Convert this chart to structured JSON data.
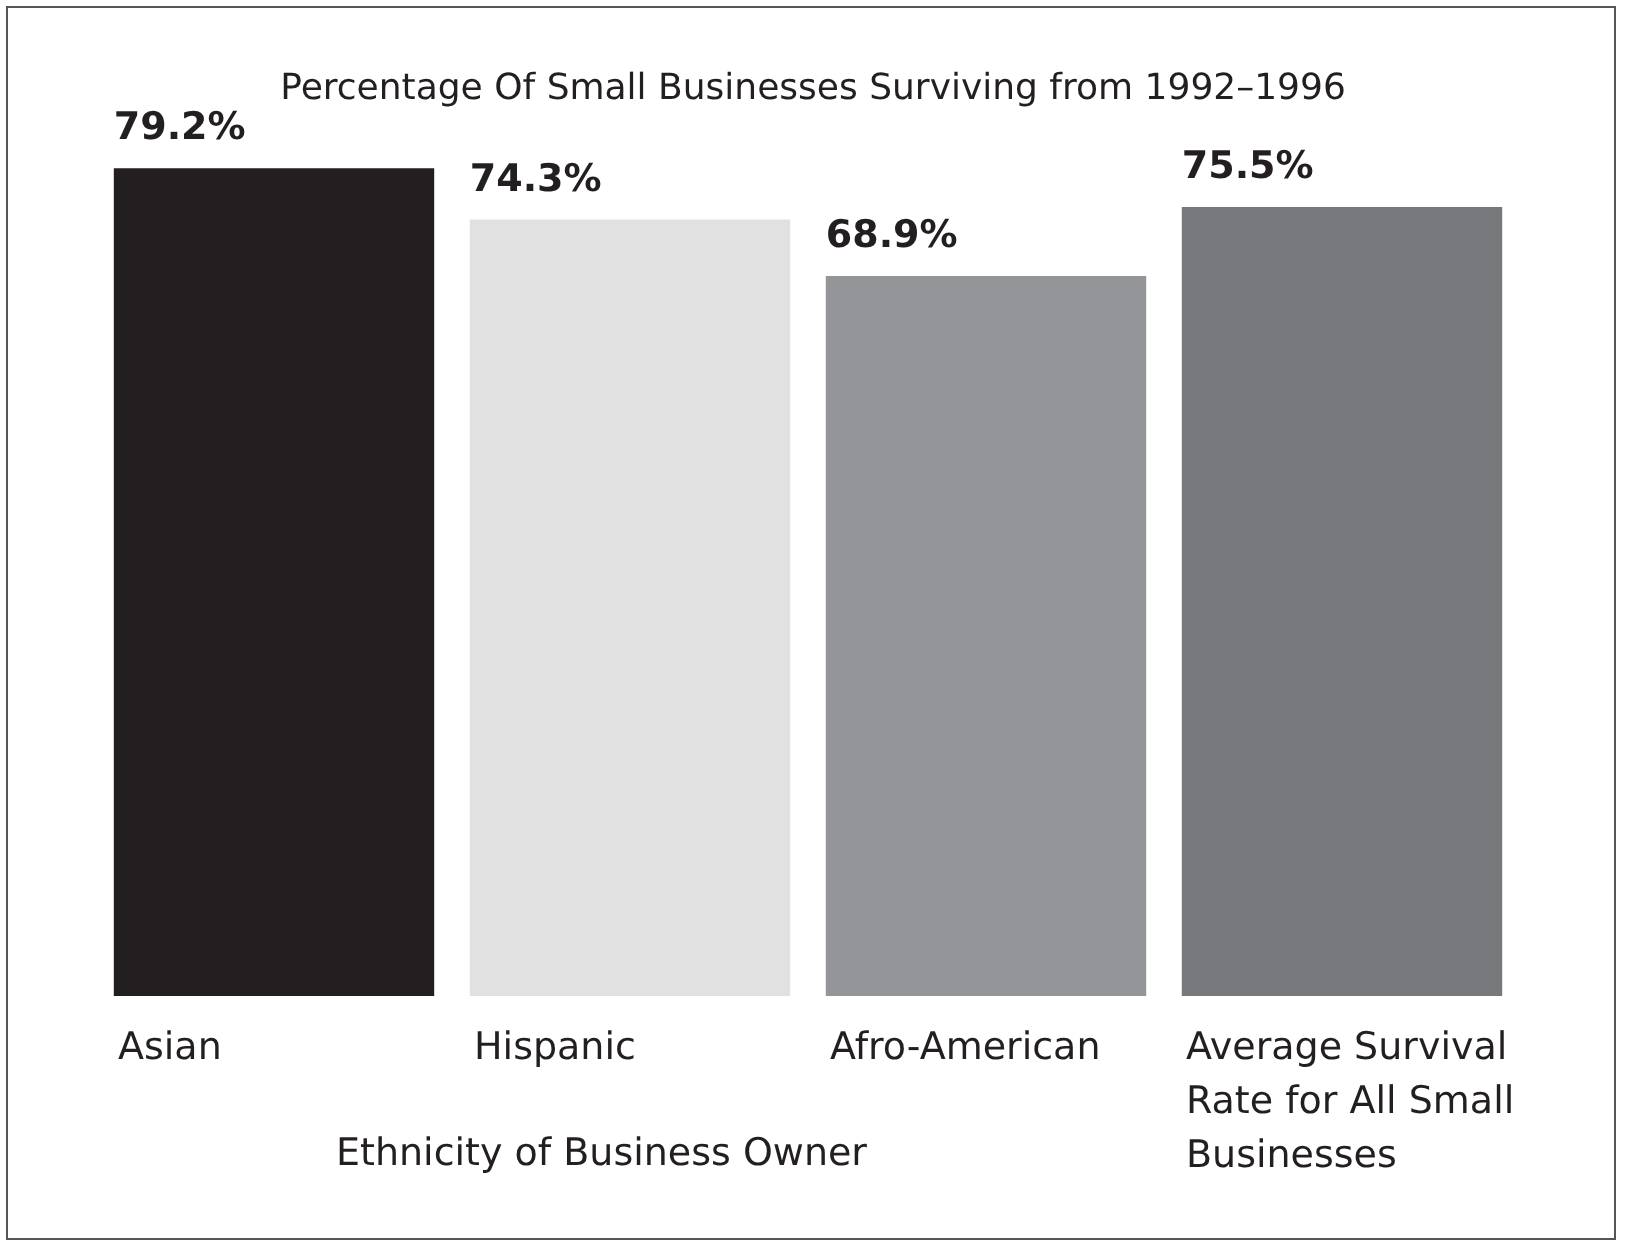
{
  "chart_data": {
    "type": "bar",
    "title": "Percentage Of Small Businesses Surviving from 1992–1996",
    "xlabel": "Ethnicity of Business Owner",
    "categories": [
      "Asian",
      "Hispanic",
      "Afro-American",
      "Average Survival Rate for All Small Businesses"
    ],
    "values": [
      79.2,
      74.3,
      68.9,
      75.5
    ],
    "colors": [
      "#231f20",
      "#e1e1e2",
      "#939598",
      "#77787b"
    ],
    "value_labels": [
      "79.2%",
      "74.3%",
      "68.9%",
      "75.5%"
    ],
    "tick_labels": "x"
  }
}
